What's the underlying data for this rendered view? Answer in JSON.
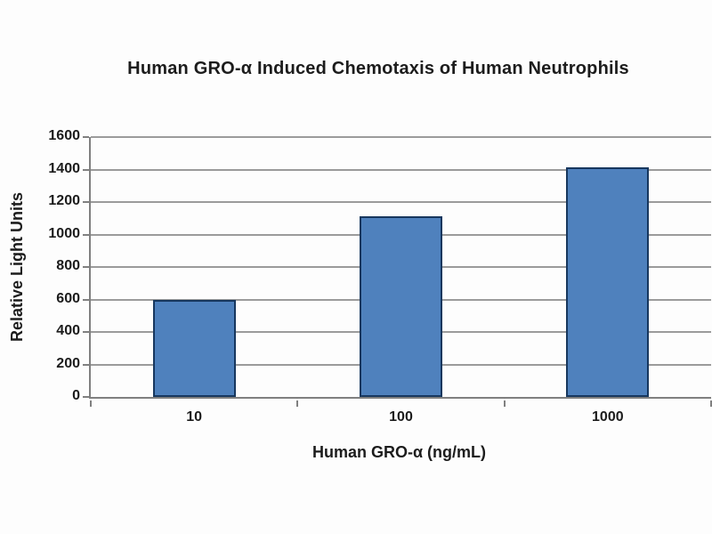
{
  "chart_data": {
    "type": "bar",
    "title": "Human GRO-α Induced Chemotaxis of Human Neutrophils",
    "xlabel": "Human GRO-α (ng/mL)",
    "ylabel": "Relative Light Units",
    "categories": [
      "10",
      "100",
      "1000"
    ],
    "values": [
      600,
      1115,
      1415
    ],
    "ylim": [
      0,
      1600
    ],
    "ytick_step": 200,
    "grid": true,
    "legend_position": "none",
    "bar_width_fraction": 0.4,
    "colors": {
      "bar_fill": "#4f81bd",
      "bar_border": "#17375e",
      "axis_line": "#808080",
      "gridline": "#9b9b9b",
      "text": "#1c1c1c",
      "background": "#fdfdfd"
    }
  }
}
